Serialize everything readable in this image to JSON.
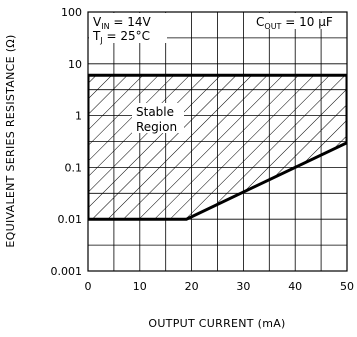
{
  "chart_data": {
    "type": "area",
    "title": "",
    "xlabel": "OUTPUT CURRENT (mA)",
    "ylabel": "EQUIVALENT SERIES RESISTANCE (Ω)",
    "xlim": [
      0,
      50
    ],
    "ylim": [
      0.001,
      100
    ],
    "yscale": "log",
    "grid": true,
    "x_ticks": [
      "0",
      "10",
      "20",
      "30",
      "40",
      "50"
    ],
    "y_ticks": [
      "0.001",
      "0.01",
      "0.1",
      "1",
      "10",
      "100"
    ],
    "annotations": {
      "vin": "V",
      "vin_sub": "IN",
      "vin_val": " = 14V",
      "tj": "T",
      "tj_sub": "J",
      "tj_val": " = 25°C",
      "cout": "C",
      "cout_sub": "OUT",
      "cout_val": " = 10 μF",
      "region_line1": "Stable",
      "region_line2": "Region"
    },
    "series": [
      {
        "name": "Stable Region",
        "x": [
          0,
          0,
          19,
          50,
          50,
          0
        ],
        "y": [
          6,
          0.01,
          0.01,
          0.3,
          6,
          6
        ]
      }
    ]
  }
}
